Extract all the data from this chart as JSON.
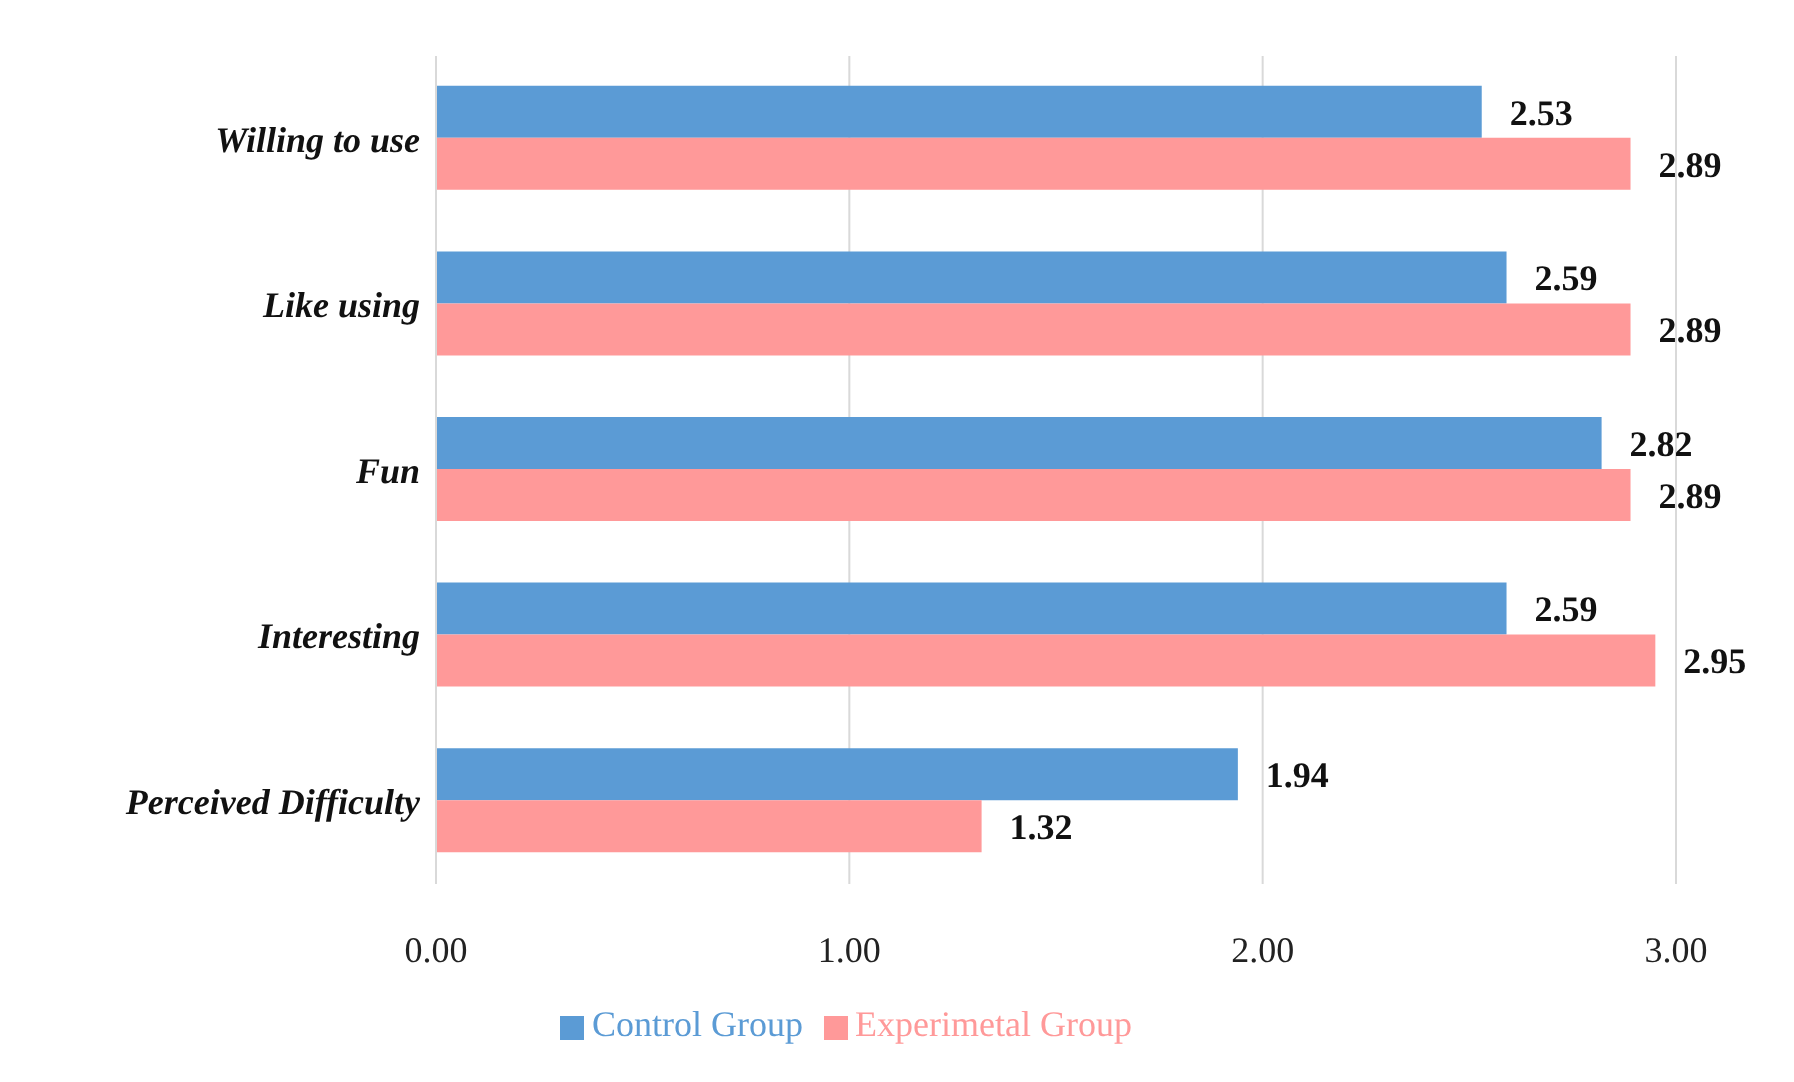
{
  "chart_data": {
    "type": "bar",
    "orientation": "horizontal",
    "categories": [
      "Willing to use",
      "Like using",
      "Fun",
      "Interesting",
      "Perceived Difficulty"
    ],
    "series": [
      {
        "name": "Control Group",
        "color": "#5b9bd5",
        "values": [
          2.53,
          2.59,
          2.82,
          2.59,
          1.94
        ]
      },
      {
        "name": "Experimetal Group",
        "color": "#ff9999",
        "values": [
          2.89,
          2.89,
          2.89,
          2.95,
          1.32
        ]
      }
    ],
    "xlim": [
      0,
      3
    ],
    "xticks": [
      {
        "value": 0,
        "label": "0.00"
      },
      {
        "value": 1,
        "label": "1.00"
      },
      {
        "value": 2,
        "label": "2.00"
      },
      {
        "value": 3,
        "label": "3.00"
      }
    ],
    "grid": "x",
    "legend": "bottom",
    "data_labels": true
  }
}
